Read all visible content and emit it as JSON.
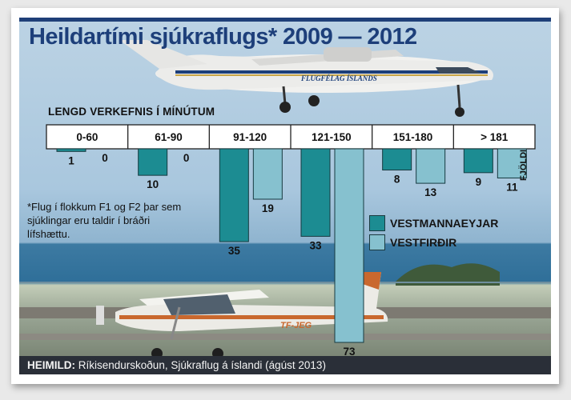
{
  "title": "Heildartími sjúkraflugs* 2009 — 2012",
  "footnote": "*Flug í flokkum F1 og F2 þar sem sjúklingar eru taldir í bráðri lífshættu.",
  "source": {
    "label": "HEIMILD:",
    "text": "Ríkisendurskoðun, Sjúkraflug á íslandi (ágúst 2013)"
  },
  "colors": {
    "vestmannaeyjar": "#1c8c92",
    "vestfirdir": "#86c1cf",
    "title": "#1d3f7a"
  },
  "airplane_livery": "FLUGFÉLAG ÍSLANDS",
  "tail_registration": "TF-JEG",
  "chart_data": {
    "type": "bar",
    "title": "Heildartími sjúkraflugs* 2009 — 2012",
    "xlabel": "LENGD VERKEFNIS Í MÍNÚTUM",
    "ylabel": "FJÖLDI",
    "categories": [
      "0-60",
      "61-90",
      "91-120",
      "121-150",
      "151-180",
      "> 181"
    ],
    "series": [
      {
        "name": "VESTMANNAEYJAR",
        "values": [
          1,
          10,
          35,
          33,
          8,
          9
        ]
      },
      {
        "name": "VESTFIRÐIR",
        "values": [
          0,
          0,
          19,
          73,
          13,
          11
        ]
      }
    ],
    "orientation": "bars hang downward from category band",
    "ylim": [
      0,
      73
    ],
    "grid": false,
    "legend": "middle-right"
  }
}
